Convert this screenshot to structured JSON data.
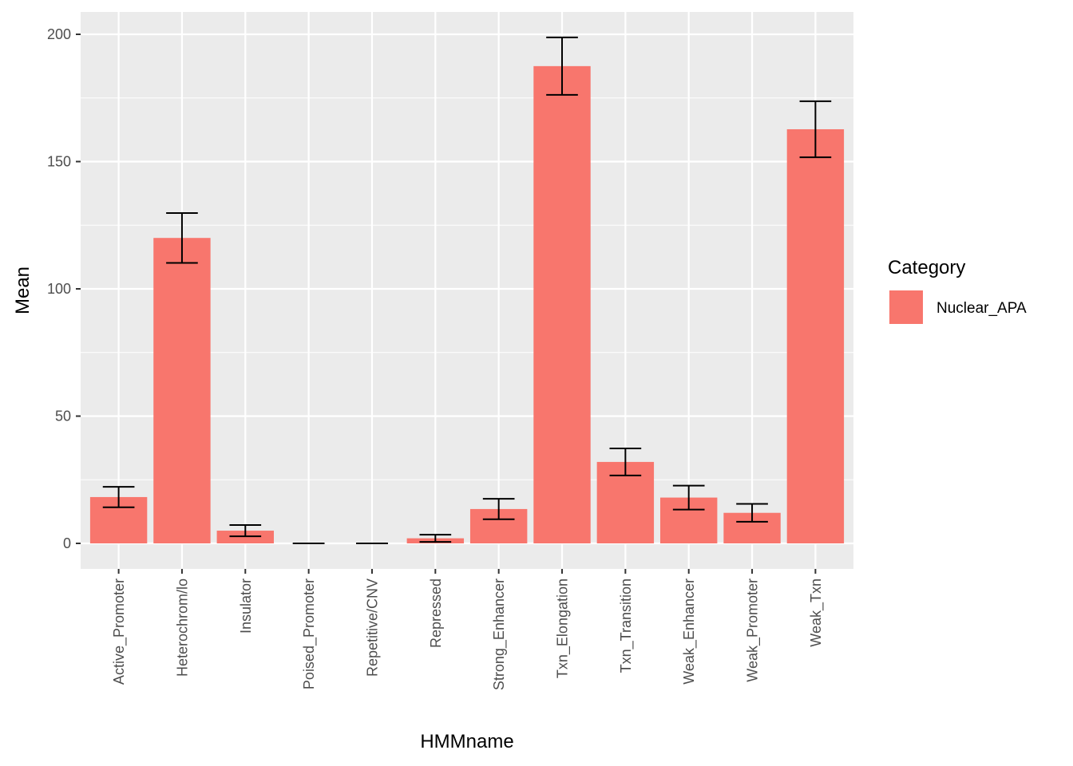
{
  "chart_data": {
    "type": "bar",
    "title": "",
    "xlabel": "HMMname",
    "ylabel": "Mean",
    "ylim": [
      -5,
      210
    ],
    "yticks": [
      0,
      50,
      100,
      150,
      200
    ],
    "categories": [
      "Active_Promoter",
      "Heterochrom/lo",
      "Insulator",
      "Poised_Promoter",
      "Repetitive/CNV",
      "Repressed",
      "Strong_Enhancer",
      "Txn_Elongation",
      "Txn_Transition",
      "Weak_Enhancer",
      "Weak_Promoter",
      "Weak_Txn"
    ],
    "series": [
      {
        "name": "Nuclear_APA",
        "color": "#F8766D",
        "values": [
          18.2,
          120.0,
          5.0,
          0,
          0,
          2.0,
          13.5,
          187.5,
          32.0,
          18.0,
          12.0,
          162.7
        ],
        "error_low": [
          14.2,
          110.2,
          2.8,
          0,
          0,
          0.6,
          9.5,
          176.2,
          26.7,
          13.3,
          8.5,
          151.7
        ],
        "error_high": [
          22.2,
          129.8,
          7.2,
          0,
          0,
          3.4,
          17.5,
          198.8,
          37.3,
          22.7,
          15.5,
          173.7
        ]
      }
    ],
    "legend": {
      "title": "Category",
      "position": "right"
    },
    "grid": true
  }
}
